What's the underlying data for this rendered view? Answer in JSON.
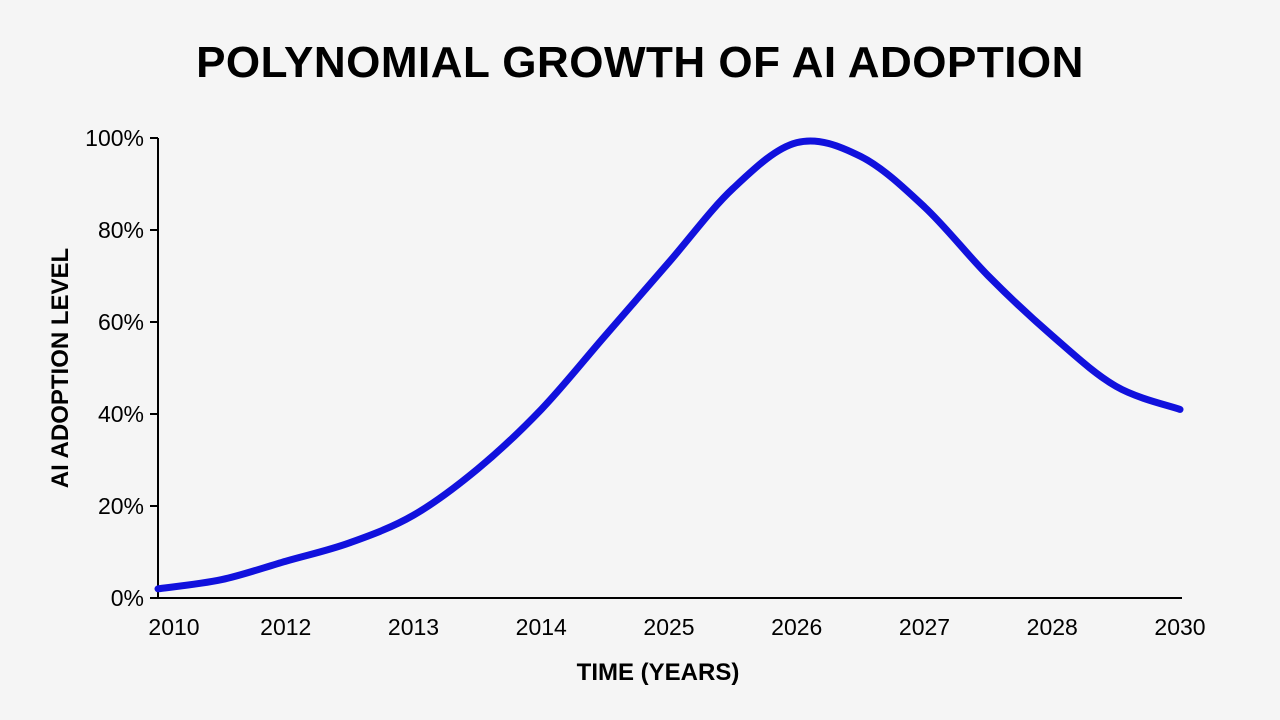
{
  "chart_data": {
    "type": "line",
    "title": "POLYNOMIAL GROWTH OF AI ADOPTION",
    "xlabel": "TIME (YEARS)",
    "ylabel": "AI ADOPTION LEVEL",
    "categories": [
      "2010",
      "2012",
      "2013",
      "2014",
      "2025",
      "2026",
      "2027",
      "2028",
      "2030"
    ],
    "y_ticks": [
      "0%",
      "20%",
      "40%",
      "60%",
      "80%",
      "100%"
    ],
    "ylim": [
      0,
      100
    ],
    "grid": false,
    "legend": "none",
    "series": [
      {
        "color": "#1111dd",
        "x": [
          "2010",
          "",
          "2012",
          "",
          "2013",
          "",
          "2014",
          "",
          "2025",
          "",
          "2026",
          "",
          "2027",
          "",
          "2028",
          "",
          "2030"
        ],
        "values": [
          2,
          4,
          8,
          12,
          18,
          28,
          41,
          57,
          73,
          89,
          99,
          96,
          85,
          70,
          57,
          46,
          41
        ]
      }
    ]
  }
}
